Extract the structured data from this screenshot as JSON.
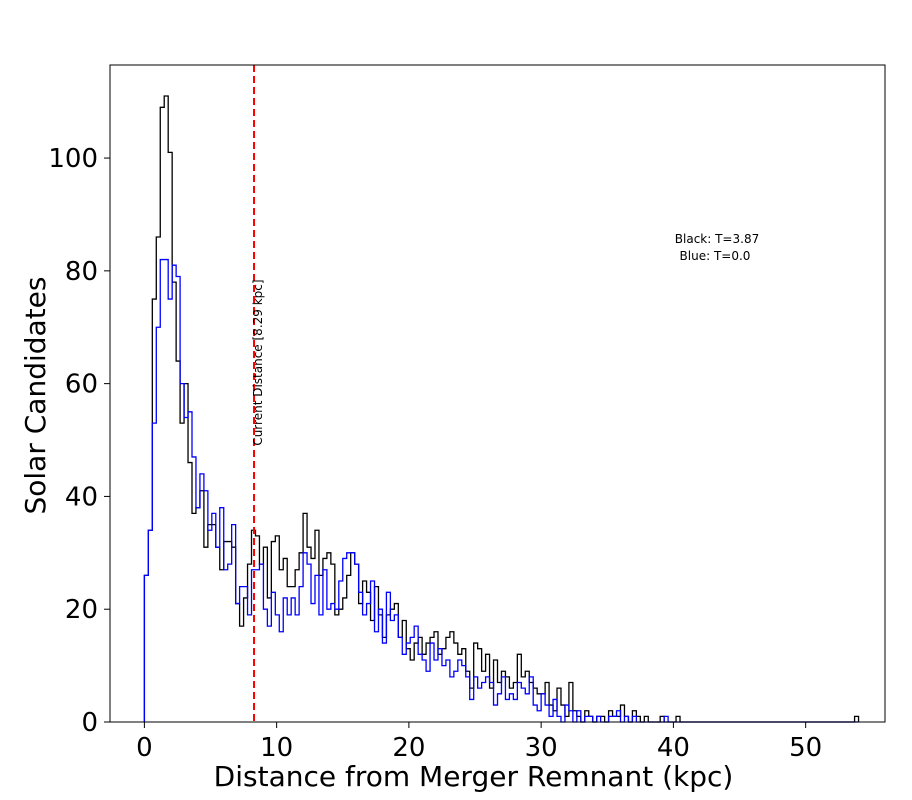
{
  "chart_data": {
    "type": "histogram",
    "title": "",
    "xlabel": "Distance from Merger Remnant (kpc)",
    "ylabel": "Solar Candidates",
    "xlim": [
      -2.6,
      56.0
    ],
    "ylim": [
      0,
      116.5
    ],
    "xticks": [
      0,
      10,
      20,
      30,
      40,
      50
    ],
    "yticks": [
      0,
      20,
      40,
      60,
      80,
      100
    ],
    "grid": false,
    "annotation_box": {
      "line1": "Black: T=3.87",
      "line2": "Blue: T=0.0"
    },
    "vline": {
      "x": 8.29,
      "label": "Current Distance [8.29 kpc]",
      "color": "#ff0000",
      "style": "dashed"
    },
    "bin_start": 0.0,
    "bin_width": 0.3,
    "series": [
      {
        "color": "#000000",
        "values": [
          26,
          34,
          75,
          86,
          109,
          111,
          101,
          78,
          64,
          53,
          60,
          46,
          37,
          38,
          41,
          31,
          35,
          35,
          31,
          27,
          32,
          32,
          31,
          21,
          17,
          22,
          28,
          34,
          33,
          28,
          31,
          22,
          32,
          33,
          27,
          29,
          24,
          24,
          27,
          30,
          37,
          31,
          29,
          34,
          26,
          29,
          30,
          28,
          19,
          20,
          22,
          26,
          30,
          28,
          21,
          25,
          23,
          18,
          24,
          19,
          15,
          19,
          20,
          21,
          15,
          18,
          13,
          11,
          14,
          15,
          12,
          14,
          15,
          16,
          12,
          13,
          15,
          16,
          14,
          12,
          13,
          9,
          6,
          14,
          13,
          9,
          12,
          6,
          11,
          7,
          9,
          8,
          6,
          7,
          12,
          8,
          9,
          7,
          6,
          5,
          5,
          7,
          3,
          2,
          6,
          3,
          1,
          7,
          2,
          1,
          0,
          2,
          1,
          0,
          1,
          1,
          0,
          2,
          1,
          1,
          3,
          1,
          0,
          2,
          1,
          0,
          1,
          0,
          0,
          0,
          1,
          0,
          0,
          0,
          1,
          0,
          0,
          0,
          0,
          0,
          0,
          0,
          0,
          0,
          0,
          0,
          0,
          0,
          0,
          0,
          0,
          0,
          0,
          0,
          0,
          0,
          0,
          0,
          0,
          0,
          0,
          0,
          0,
          0,
          0,
          0,
          0,
          0,
          0,
          0,
          0,
          0,
          0,
          0,
          0,
          0,
          0,
          0,
          0,
          1
        ]
      },
      {
        "color": "#0000ff",
        "values": [
          26,
          34,
          53,
          70,
          82,
          82,
          75,
          81,
          79,
          60,
          54,
          55,
          47,
          38,
          44,
          41,
          34,
          37,
          31,
          38,
          27,
          28,
          35,
          21,
          24,
          24,
          19,
          27,
          27,
          28,
          20,
          17,
          23,
          19,
          16,
          22,
          19,
          22,
          19,
          24,
          30,
          28,
          21,
          26,
          19,
          27,
          20,
          21,
          20,
          25,
          29,
          30,
          30,
          28,
          23,
          19,
          21,
          25,
          16,
          20,
          14,
          23,
          18,
          19,
          15,
          12,
          14,
          15,
          17,
          12,
          11,
          9,
          14,
          11,
          13,
          10,
          11,
          8,
          9,
          11,
          10,
          8,
          4,
          8,
          6,
          7,
          8,
          7,
          3,
          5,
          8,
          4,
          5,
          4,
          7,
          6,
          5,
          8,
          3,
          2,
          5,
          3,
          1,
          4,
          1,
          0,
          3,
          2,
          0,
          2,
          0,
          1,
          1,
          0,
          1,
          0,
          0,
          1,
          1,
          2,
          0,
          1,
          0,
          1,
          0,
          0,
          0,
          0,
          0,
          0,
          0,
          1,
          0,
          0,
          0,
          0,
          0,
          0,
          0,
          0,
          0,
          0,
          0,
          0,
          0,
          0,
          0,
          0,
          0,
          0,
          0,
          0,
          0,
          0,
          0,
          0,
          0,
          0,
          0,
          0,
          0,
          0,
          0,
          0,
          0,
          0,
          0,
          0,
          0,
          0,
          0,
          0,
          0,
          0,
          0,
          0,
          0,
          0,
          0,
          0
        ]
      }
    ]
  }
}
